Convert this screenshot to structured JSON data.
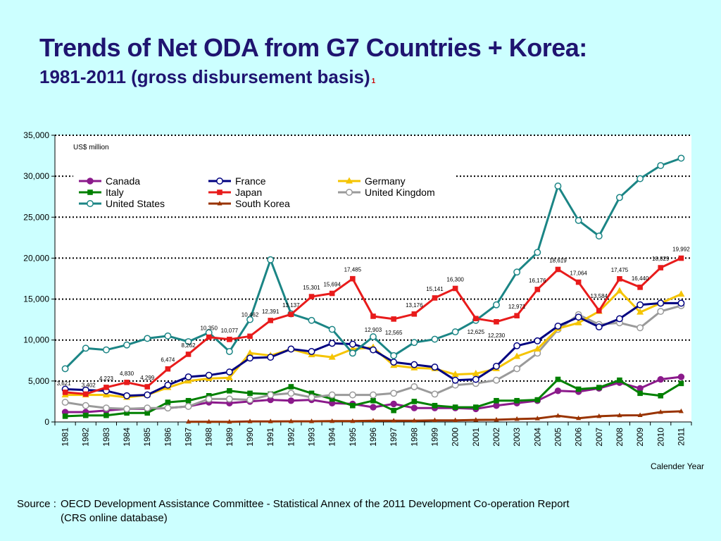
{
  "title": {
    "line1": "Trends of Net ODA from G7 Countries + Korea:",
    "line2": "1981-2011 (gross disbursement basis)",
    "footnote_mark": "1"
  },
  "source": {
    "label": "Source :",
    "line1": "OECD Development Assistance Committee - Statistical Annex of the 2011 Development Co-operation Report",
    "line2": "(CRS online database)"
  },
  "chart_data": {
    "type": "line",
    "unit_label": "US$ million",
    "xlabel": "Calender Year",
    "ylim": [
      0,
      35000
    ],
    "yticks": [
      0,
      5000,
      10000,
      15000,
      20000,
      25000,
      30000,
      35000
    ],
    "ytick_labels": [
      "0",
      "5,000",
      "10,000",
      "15,000",
      "20,000",
      "25,000",
      "30,000",
      "35,000"
    ],
    "grid": "horizontal dotted",
    "legend_position": "top",
    "categories": [
      "1981",
      "1982",
      "1983",
      "1984",
      "1985",
      "1986",
      "1987",
      "1988",
      "1989",
      "1990",
      "1991",
      "1992",
      "1993",
      "1994",
      "1995",
      "1996",
      "1997",
      "1998",
      "1999",
      "2000",
      "2001",
      "2002",
      "2003",
      "2004",
      "2005",
      "2006",
      "2007",
      "2008",
      "2009",
      "2010",
      "2011"
    ],
    "series": [
      {
        "name": "Canada",
        "color": "#8b1a8b",
        "marker": "circle-filled",
        "values": [
          1200,
          1200,
          1400,
          1600,
          1600,
          1700,
          1900,
          2400,
          2300,
          2500,
          2700,
          2600,
          2700,
          2300,
          2200,
          1800,
          2200,
          1700,
          1700,
          1700,
          1600,
          2000,
          2300,
          2600,
          3800,
          3700,
          4100,
          4800,
          4100,
          5200,
          5500
        ]
      },
      {
        "name": "France",
        "color": "#000080",
        "marker": "circle-open",
        "values": [
          4000,
          3900,
          3800,
          3200,
          3300,
          4500,
          5500,
          5700,
          6100,
          7800,
          7900,
          8900,
          8600,
          9600,
          9500,
          8800,
          7300,
          7000,
          6700,
          5100,
          5200,
          6800,
          9300,
          9900,
          11700,
          12800,
          11600,
          12600,
          14300,
          14500,
          14500
        ]
      },
      {
        "name": "Germany",
        "color": "#f5c400",
        "marker": "triangle",
        "values": [
          3300,
          3300,
          3300,
          3000,
          3300,
          4200,
          5000,
          5300,
          5400,
          8400,
          8100,
          8900,
          8200,
          7900,
          8900,
          9100,
          6900,
          6600,
          6500,
          5800,
          5900,
          6500,
          8000,
          8900,
          11400,
          12100,
          13500,
          16000,
          13400,
          14500,
          15600
        ]
      },
      {
        "name": "Italy",
        "color": "#008000",
        "marker": "square",
        "values": [
          700,
          800,
          800,
          1100,
          1100,
          2400,
          2600,
          3200,
          3800,
          3500,
          3400,
          4300,
          3500,
          2800,
          2000,
          2600,
          1400,
          2500,
          2000,
          1800,
          1800,
          2600,
          2600,
          2700,
          5200,
          4000,
          4200,
          5100,
          3500,
          3200,
          4700
        ]
      },
      {
        "name": "Japan",
        "color": "#e81b1b",
        "marker": "square",
        "values": [
          3621,
          3402,
          4223,
          4830,
          4299,
          6474,
          8262,
          10350,
          10077,
          10462,
          12391,
          13137,
          15301,
          15694,
          17485,
          12903,
          12565,
          13176,
          15141,
          16300,
          12625,
          12230,
          12971,
          16176,
          18619,
          17064,
          13584,
          17475,
          16440,
          18829,
          19992
        ]
      },
      {
        "name": "United Kingdom",
        "color": "#9a9a9a",
        "marker": "circle-open",
        "values": [
          2400,
          2000,
          1700,
          1600,
          1700,
          1700,
          1900,
          2800,
          2800,
          2700,
          3300,
          3500,
          3000,
          3300,
          3300,
          3300,
          3500,
          4300,
          3400,
          4500,
          4700,
          5100,
          6500,
          8400,
          11300,
          13100,
          11900,
          12100,
          11500,
          13500,
          14200
        ]
      },
      {
        "name": "United States",
        "color": "#1b8585",
        "marker": "circle-open",
        "values": [
          6500,
          9000,
          8800,
          9400,
          10200,
          10500,
          9800,
          10900,
          8600,
          12500,
          19800,
          13200,
          12400,
          11300,
          8400,
          10400,
          8100,
          9700,
          10100,
          11000,
          12400,
          14300,
          18300,
          20700,
          28800,
          24600,
          22700,
          27400,
          29700,
          31300,
          32200
        ]
      },
      {
        "name": "South Korea",
        "color": "#993300",
        "marker": "triangle-small",
        "values": [
          null,
          null,
          null,
          null,
          null,
          null,
          20,
          20,
          10,
          60,
          60,
          80,
          80,
          100,
          100,
          150,
          150,
          150,
          200,
          200,
          250,
          270,
          350,
          420,
          750,
          450,
          700,
          800,
          820,
          1200,
          1300
        ]
      }
    ],
    "japan_data_labels": [
      "3,621",
      "3,402",
      "4,223",
      "4,830",
      "4,299",
      "6,474",
      "8,262",
      "10,350",
      "10,077",
      "10,462",
      "12,391",
      "13,137",
      "15,301",
      "15,694",
      "17,485",
      "12,903",
      "12,565",
      "13,176",
      "15,141",
      "16,300",
      "12,625",
      "12,230",
      "12,971",
      "16,176",
      "18,619",
      "17,064",
      "13,584",
      "17,475",
      "16,440",
      "18,829",
      "19,992"
    ]
  }
}
